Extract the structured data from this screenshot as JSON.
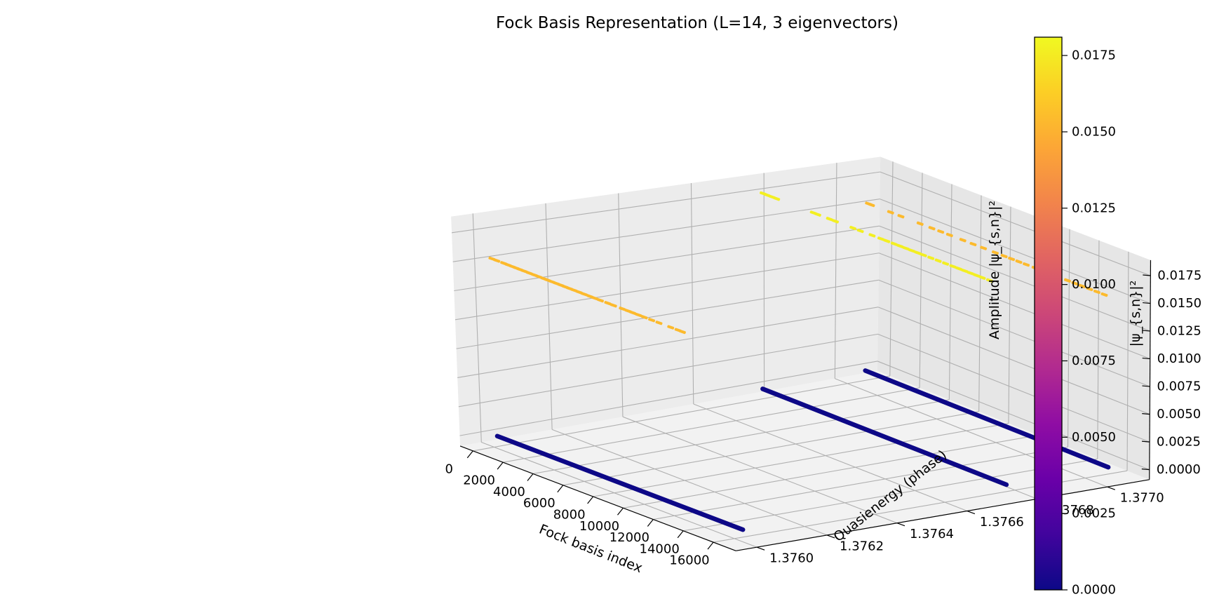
{
  "chart_data": {
    "type": "scatter",
    "projection": "3d",
    "title": "Fock Basis Representation (L=14, 3 eigenvectors)",
    "xlabel": "Fock basis index",
    "ylabel": "Quasienergy (phase)",
    "zlabel": "Amplitude |ψ_{s,n}|²",
    "xlim": [
      -850,
      17500
    ],
    "ylim": [
      1.37594,
      1.37712
    ],
    "zlim": [
      -0.0009,
      0.0189
    ],
    "x_ticks": [
      0,
      2000,
      4000,
      6000,
      8000,
      10000,
      12000,
      14000,
      16000
    ],
    "x_tick_labels": [
      "0",
      "2000",
      "4000",
      "6000",
      "8000",
      "10000",
      "12000",
      "14000",
      "16000"
    ],
    "y_ticks": [
      1.376,
      1.3762,
      1.3764,
      1.3766,
      1.3768,
      1.377
    ],
    "y_tick_labels": [
      "1.3760",
      "1.3762",
      "1.3764",
      "1.3766",
      "1.3768",
      "1.3770"
    ],
    "z_ticks": [
      0,
      0.0025,
      0.005,
      0.0075,
      0.01,
      0.0125,
      0.015,
      0.0175
    ],
    "z_tick_labels": [
      "0.0000",
      "0.0025",
      "0.0050",
      "0.0075",
      "0.0100",
      "0.0125",
      "0.0150",
      "0.0175"
    ],
    "grid": true,
    "colormap": "plasma",
    "colorbar": {
      "label": "|ψ_{s,n}|²",
      "range": [
        0,
        0.0181
      ],
      "ticks": [
        0,
        0.0025,
        0.005,
        0.0075,
        0.01,
        0.0125,
        0.015,
        0.0175
      ],
      "tick_labels": [
        "0.0000",
        "0.0025",
        "0.0050",
        "0.0075",
        "0.0100",
        "0.0125",
        "0.0150",
        "0.0175"
      ]
    },
    "series": [
      {
        "quasienergy": 1.37601,
        "fock_index_range": [
          0,
          16383
        ],
        "background_amplitude": 0.0,
        "peak_amplitude": 0.0154,
        "peak_fock_indices": [
          100,
          430,
          900,
          1200,
          1500,
          1750,
          2000,
          2300,
          2650,
          3000,
          3300,
          3650,
          3900,
          4200,
          4500,
          4800,
          5100,
          5400,
          5700,
          6050,
          6400,
          6800,
          7100,
          7500,
          8000,
          8400,
          9000,
          9400,
          9700,
          10100,
          10500,
          11000,
          11500,
          12300,
          12800,
          13100
        ]
      },
      {
        "quasienergy": 1.37676,
        "fock_index_range": [
          0,
          16383
        ],
        "background_amplitude": 0.0,
        "peak_amplitude": 0.0177,
        "peak_fock_indices": [
          80,
          350,
          700,
          1000,
          3500,
          3800,
          4600,
          5000,
          6200,
          6700,
          7500,
          8100,
          8500,
          9000,
          9400,
          9800,
          10200,
          10600,
          11000,
          11500,
          12000,
          12500,
          13000,
          13400,
          13800,
          14200,
          14600,
          15000,
          15500
        ]
      },
      {
        "quasienergy": 1.37705,
        "fock_index_range": [
          0,
          16383
        ],
        "background_amplitude": 0.0,
        "peak_amplitude": 0.0154,
        "peak_fock_indices": [
          100,
          300,
          1600,
          2300,
          3600,
          4400,
          5000,
          5600,
          6500,
          7200,
          7900,
          8700,
          9300,
          9800,
          10300,
          10800,
          11400,
          11900,
          12500,
          13000,
          13600,
          14100,
          14600,
          15100,
          15600,
          16100
        ]
      }
    ]
  }
}
